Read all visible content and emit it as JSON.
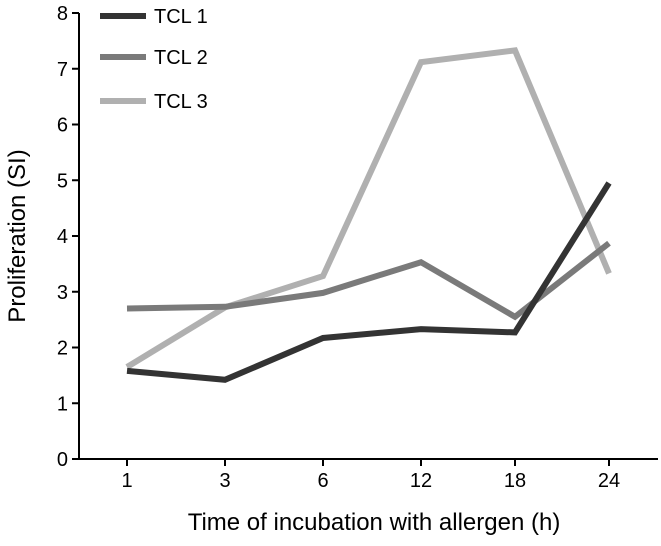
{
  "chart_data": {
    "type": "line",
    "title": "",
    "xlabel": "Time of incubation with allergen (h)",
    "ylabel": "Proliferation (SI)",
    "categories": [
      "1",
      "3",
      "6",
      "12",
      "18",
      "24"
    ],
    "ylim": [
      0,
      8
    ],
    "yticks": [
      "0",
      "1",
      "2",
      "3",
      "4",
      "5",
      "6",
      "7",
      "8"
    ],
    "grid": false,
    "legend_position": "top-left",
    "series": [
      {
        "name": "TCL 1",
        "color": "#333333",
        "values": [
          1.58,
          1.42,
          2.17,
          2.33,
          2.27,
          4.95
        ]
      },
      {
        "name": "TCL 2",
        "color": "#7a7a7a",
        "values": [
          2.7,
          2.73,
          2.98,
          3.53,
          2.55,
          3.87
        ]
      },
      {
        "name": "TCL 3",
        "color": "#b0b0b0",
        "values": [
          1.65,
          2.72,
          3.28,
          7.12,
          7.33,
          3.33
        ]
      }
    ]
  }
}
